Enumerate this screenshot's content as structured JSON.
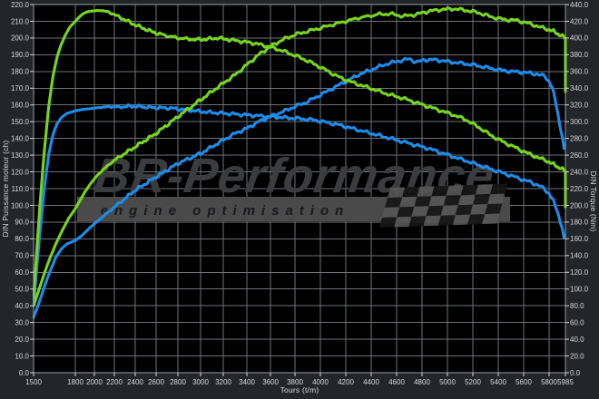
{
  "watermark": {
    "brand": "BR-Performance",
    "tagline": "engine optimisation"
  },
  "axes": {
    "x": {
      "label": "Tours (t/m)",
      "ticks": [
        1500,
        1800,
        2000,
        2200,
        2400,
        2600,
        2800,
        3000,
        3200,
        3400,
        3600,
        3800,
        4000,
        4200,
        4400,
        4600,
        4800,
        5000,
        5200,
        5400,
        5600,
        5800,
        5985
      ]
    },
    "y_left": {
      "label": "DIN Puissance moteur (ch)",
      "min": 0,
      "max": 220,
      "step": 10
    },
    "y_right": {
      "label": "DIN Torque (Nm)",
      "min": 0,
      "max": 440,
      "step": 20
    }
  },
  "colors": {
    "tuned": "#77d51e",
    "stock": "#1d8ceb",
    "background": "#22252a",
    "plot_background": "#000000",
    "grid": "#6e7378",
    "border": "#9aa0a6",
    "tick_text": "#d6d9dd",
    "watermark_letters": "#3b3c3e",
    "watermark_band": "#4a4a4a",
    "flag_light": "#565656",
    "flag_dark": "#161616"
  },
  "chart_data": {
    "type": "line",
    "title": "",
    "xlabel": "Tours (t/m)",
    "ylabel_left": "DIN Puissance moteur (ch)",
    "ylabel_right": "DIN Torque (Nm)",
    "x_range": [
      1500,
      5985
    ],
    "y_left_range": [
      0,
      220
    ],
    "y_right_range": [
      0,
      440
    ],
    "grid": true,
    "legend_position": "none",
    "series": [
      {
        "id": "torque_stock",
        "axis": "right",
        "unit": "Nm",
        "color": "#1d8ceb",
        "points": [
          [
            1500,
            80
          ],
          [
            1520,
            120
          ],
          [
            1550,
            175
          ],
          [
            1580,
            225
          ],
          [
            1610,
            262
          ],
          [
            1640,
            285
          ],
          [
            1670,
            298
          ],
          [
            1700,
            305
          ],
          [
            1740,
            310
          ],
          [
            1800,
            313
          ],
          [
            1870,
            314.5
          ],
          [
            1950,
            315.5
          ],
          [
            2050,
            317
          ],
          [
            2150,
            318
          ],
          [
            2250,
            317.5
          ],
          [
            2350,
            318.5
          ],
          [
            2450,
            318
          ],
          [
            2550,
            317
          ],
          [
            2650,
            316.5
          ],
          [
            2750,
            316
          ],
          [
            2850,
            314.5
          ],
          [
            2950,
            313
          ],
          [
            3050,
            311.5
          ],
          [
            3150,
            310.5
          ],
          [
            3250,
            309.5
          ],
          [
            3350,
            308.5
          ],
          [
            3450,
            307.5
          ],
          [
            3550,
            306.5
          ],
          [
            3650,
            305.5
          ],
          [
            3750,
            304.5
          ],
          [
            3850,
            303.5
          ],
          [
            3950,
            302
          ],
          [
            4050,
            299
          ],
          [
            4150,
            296
          ],
          [
            4250,
            292
          ],
          [
            4350,
            288
          ],
          [
            4450,
            284
          ],
          [
            4550,
            280
          ],
          [
            4650,
            276
          ],
          [
            4750,
            272
          ],
          [
            4850,
            268
          ],
          [
            4950,
            263
          ],
          [
            5050,
            258
          ],
          [
            5150,
            253
          ],
          [
            5250,
            248
          ],
          [
            5350,
            243
          ],
          [
            5450,
            238
          ],
          [
            5550,
            233
          ],
          [
            5650,
            228
          ],
          [
            5730,
            223
          ],
          [
            5790,
            216
          ],
          [
            5840,
            207
          ],
          [
            5880,
            197
          ],
          [
            5915,
            186
          ],
          [
            5945,
            172
          ],
          [
            5970,
            161
          ]
        ]
      },
      {
        "id": "power_stock",
        "axis": "left",
        "unit": "ch",
        "color": "#1d8ceb",
        "points": [
          [
            1500,
            33
          ],
          [
            1540,
            42
          ],
          [
            1580,
            52
          ],
          [
            1620,
            61
          ],
          [
            1660,
            69
          ],
          [
            1700,
            74
          ],
          [
            1740,
            77
          ],
          [
            1800,
            79
          ],
          [
            1870,
            82
          ],
          [
            1940,
            86
          ],
          [
            2000,
            89
          ],
          [
            2100,
            94
          ],
          [
            2200,
            99
          ],
          [
            2300,
            104
          ],
          [
            2400,
            109
          ],
          [
            2500,
            113
          ],
          [
            2600,
            117
          ],
          [
            2700,
            121
          ],
          [
            2800,
            125
          ],
          [
            2900,
            128
          ],
          [
            3000,
            131
          ],
          [
            3100,
            135
          ],
          [
            3200,
            139
          ],
          [
            3300,
            143
          ],
          [
            3400,
            146
          ],
          [
            3500,
            150
          ],
          [
            3600,
            153
          ],
          [
            3700,
            156
          ],
          [
            3800,
            159
          ],
          [
            3900,
            162
          ],
          [
            4000,
            166
          ],
          [
            4100,
            170
          ],
          [
            4200,
            174
          ],
          [
            4300,
            178
          ],
          [
            4400,
            181
          ],
          [
            4500,
            184
          ],
          [
            4600,
            186
          ],
          [
            4700,
            187.5
          ],
          [
            4760,
            185.5
          ],
          [
            4820,
            187
          ],
          [
            4900,
            187
          ],
          [
            5000,
            186
          ],
          [
            5100,
            185
          ],
          [
            5200,
            184
          ],
          [
            5300,
            182.5
          ],
          [
            5400,
            181
          ],
          [
            5500,
            180
          ],
          [
            5600,
            179.5
          ],
          [
            5700,
            178.5
          ],
          [
            5770,
            177
          ],
          [
            5830,
            171
          ],
          [
            5870,
            163
          ],
          [
            5910,
            152
          ],
          [
            5945,
            141
          ],
          [
            5970,
            134
          ]
        ]
      },
      {
        "id": "torque_tuned",
        "axis": "right",
        "unit": "Nm",
        "color": "#77d51e",
        "points": [
          [
            1500,
            90
          ],
          [
            1520,
            140
          ],
          [
            1550,
            210
          ],
          [
            1580,
            270
          ],
          [
            1610,
            320
          ],
          [
            1640,
            355
          ],
          [
            1670,
            378
          ],
          [
            1700,
            393
          ],
          [
            1730,
            404
          ],
          [
            1760,
            413
          ],
          [
            1800,
            420
          ],
          [
            1840,
            425
          ],
          [
            1880,
            429
          ],
          [
            1930,
            431.5
          ],
          [
            2000,
            432.5
          ],
          [
            2070,
            433
          ],
          [
            2140,
            431
          ],
          [
            2200,
            428
          ],
          [
            2280,
            423
          ],
          [
            2360,
            418
          ],
          [
            2450,
            413
          ],
          [
            2550,
            408
          ],
          [
            2650,
            404
          ],
          [
            2800,
            400
          ],
          [
            2950,
            398
          ],
          [
            3050,
            398.5
          ],
          [
            3150,
            400
          ],
          [
            3250,
            398
          ],
          [
            3350,
            396
          ],
          [
            3450,
            394
          ],
          [
            3550,
            391
          ],
          [
            3650,
            387
          ],
          [
            3750,
            382
          ],
          [
            3850,
            376
          ],
          [
            3950,
            369
          ],
          [
            4050,
            361
          ],
          [
            4150,
            353
          ],
          [
            4250,
            347
          ],
          [
            4350,
            342
          ],
          [
            4450,
            337
          ],
          [
            4550,
            332
          ],
          [
            4650,
            328
          ],
          [
            4750,
            323
          ],
          [
            4850,
            318
          ],
          [
            4950,
            313
          ],
          [
            5050,
            308
          ],
          [
            5150,
            302
          ],
          [
            5250,
            293
          ],
          [
            5350,
            283
          ],
          [
            5450,
            275
          ],
          [
            5550,
            268
          ],
          [
            5650,
            261
          ],
          [
            5750,
            255
          ],
          [
            5850,
            249
          ],
          [
            5950,
            243
          ],
          [
            5985,
            241
          ],
          [
            5985,
            198
          ]
        ]
      },
      {
        "id": "power_tuned",
        "axis": "left",
        "unit": "ch",
        "color": "#77d51e",
        "points": [
          [
            1500,
            40
          ],
          [
            1540,
            50
          ],
          [
            1580,
            60
          ],
          [
            1620,
            69
          ],
          [
            1660,
            77
          ],
          [
            1700,
            84
          ],
          [
            1750,
            92
          ],
          [
            1800,
            98
          ],
          [
            1850,
            103
          ],
          [
            1900,
            108
          ],
          [
            1960,
            113
          ],
          [
            2030,
            118
          ],
          [
            2100,
            122
          ],
          [
            2200,
            127
          ],
          [
            2300,
            131
          ],
          [
            2400,
            135
          ],
          [
            2500,
            139
          ],
          [
            2600,
            143
          ],
          [
            2700,
            148
          ],
          [
            2800,
            153
          ],
          [
            2900,
            158
          ],
          [
            3000,
            163
          ],
          [
            3100,
            168
          ],
          [
            3200,
            173
          ],
          [
            3300,
            178
          ],
          [
            3400,
            184
          ],
          [
            3500,
            190
          ],
          [
            3600,
            195
          ],
          [
            3700,
            199
          ],
          [
            3800,
            202
          ],
          [
            3900,
            204
          ],
          [
            4000,
            206
          ],
          [
            4150,
            209
          ],
          [
            4300,
            212
          ],
          [
            4450,
            214
          ],
          [
            4550,
            214.5
          ],
          [
            4650,
            213
          ],
          [
            4750,
            214
          ],
          [
            4850,
            216
          ],
          [
            4950,
            217
          ],
          [
            5050,
            217.5
          ],
          [
            5150,
            216.5
          ],
          [
            5250,
            215
          ],
          [
            5350,
            212.5
          ],
          [
            5450,
            211
          ],
          [
            5550,
            210.5
          ],
          [
            5650,
            208.5
          ],
          [
            5750,
            206
          ],
          [
            5850,
            204
          ],
          [
            5950,
            201
          ],
          [
            5985,
            200
          ],
          [
            5985,
            168
          ]
        ]
      }
    ]
  }
}
